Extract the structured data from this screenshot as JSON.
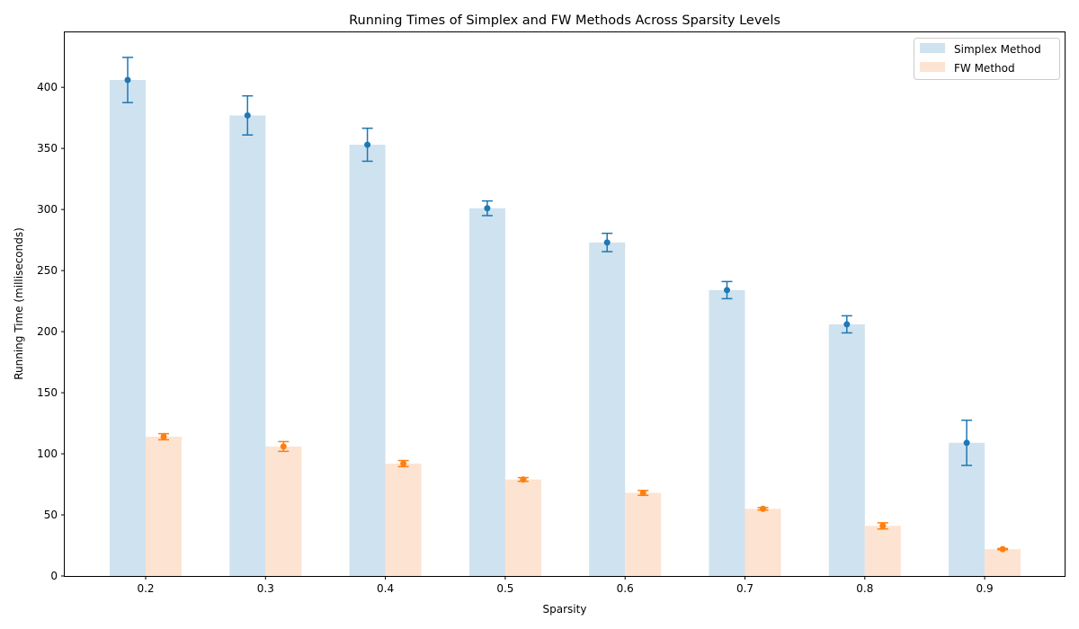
{
  "chart_data": {
    "type": "bar",
    "title": "Running Times of Simplex and FW Methods Across Sparsity Levels",
    "xlabel": "Sparsity",
    "ylabel": "Running Time (milliseconds)",
    "categories": [
      "0.2",
      "0.3",
      "0.4",
      "0.5",
      "0.6",
      "0.7",
      "0.8",
      "0.9"
    ],
    "ylim": [
      0,
      445
    ],
    "yticks": [
      0,
      50,
      100,
      150,
      200,
      250,
      300,
      350,
      400
    ],
    "grid": false,
    "legend_position": "top-right",
    "series": [
      {
        "name": "Simplex Method",
        "bar_color": "#cfe2ef",
        "marker_color": "#1f77b4",
        "values": [
          406,
          377,
          353,
          301,
          273,
          234,
          206,
          109
        ],
        "error": [
          18.5,
          16,
          13.5,
          6,
          7.5,
          7,
          7,
          18.5
        ]
      },
      {
        "name": "FW Method",
        "bar_color": "#fde3d1",
        "marker_color": "#ff7f0e",
        "values": [
          114,
          106,
          92,
          79,
          68,
          55,
          41,
          22
        ],
        "error": [
          2.5,
          4,
          2.5,
          1.5,
          2,
          1,
          2.5,
          0.5
        ]
      }
    ]
  }
}
